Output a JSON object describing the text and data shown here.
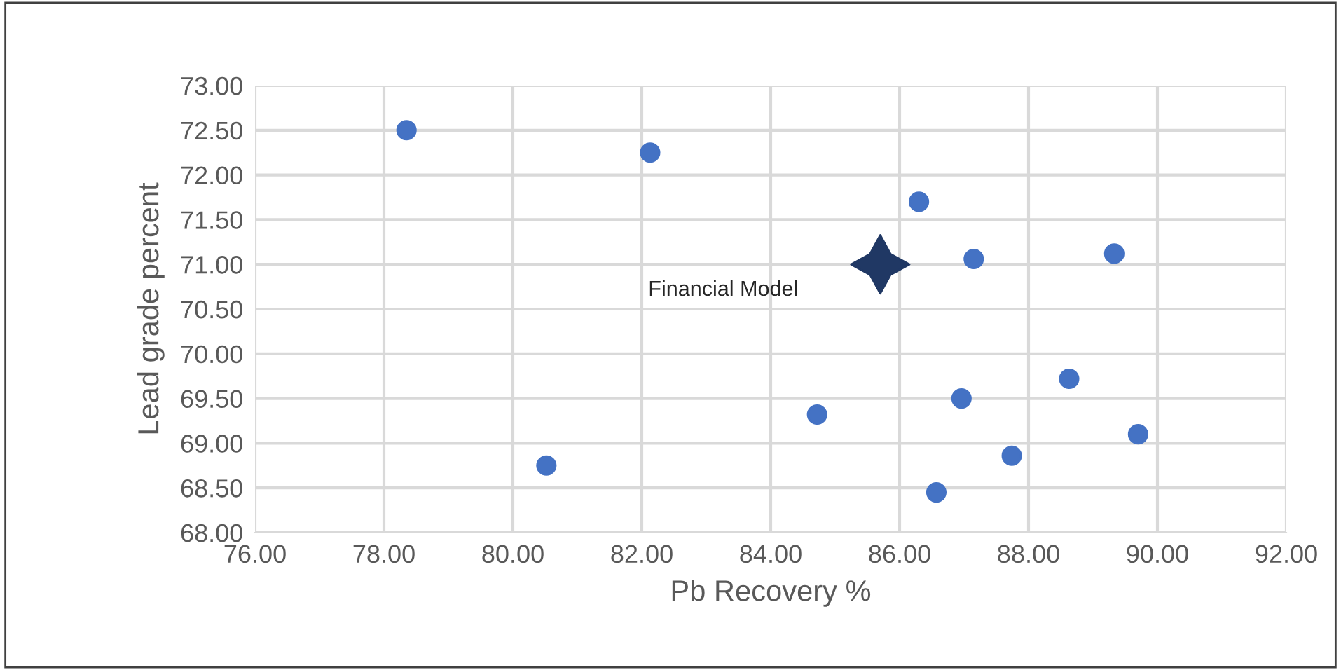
{
  "chart_data": {
    "type": "scatter",
    "xlabel": "Pb Recovery %",
    "ylabel": "Lead grade percent",
    "series": [
      {
        "color": "#4472c4",
        "marker": "circle",
        "x": [
          78.35,
          82.13,
          86.3,
          87.15,
          89.33,
          88.63,
          86.96,
          84.72,
          80.52,
          87.74,
          89.7,
          86.57
        ],
        "values": [
          72.5,
          72.25,
          71.7,
          71.06,
          71.12,
          69.72,
          69.5,
          69.32,
          68.75,
          68.86,
          69.1,
          68.45
        ]
      },
      {
        "color": "#203864",
        "marker": "star",
        "x": [
          85.7
        ],
        "values": [
          71.0
        ]
      }
    ],
    "annotations": [
      "Financial Model"
    ],
    "xlim": [
      76,
      92
    ],
    "xticks": [
      {
        "value": 76,
        "label": "76.00"
      },
      {
        "value": 78,
        "label": "78.00"
      },
      {
        "value": 80,
        "label": "80.00"
      },
      {
        "value": 82,
        "label": "82.00"
      },
      {
        "value": 84,
        "label": "84.00"
      },
      {
        "value": 86,
        "label": "86.00"
      },
      {
        "value": 88,
        "label": "88.00"
      },
      {
        "value": 90,
        "label": "90.00"
      },
      {
        "value": 92,
        "label": "92.00"
      }
    ],
    "ylim": [
      68,
      73
    ],
    "yticks": [
      {
        "value": 68,
        "label": "68.00"
      },
      {
        "value": 68.5,
        "label": "68.50"
      },
      {
        "value": 69,
        "label": "69.00"
      },
      {
        "value": 69.5,
        "label": "69.50"
      },
      {
        "value": 70,
        "label": "70.00"
      },
      {
        "value": 70.5,
        "label": "70.50"
      },
      {
        "value": 71,
        "label": "71.00"
      },
      {
        "value": 71.5,
        "label": "71.50"
      },
      {
        "value": 72,
        "label": "72.00"
      },
      {
        "value": 72.5,
        "label": "72.50"
      },
      {
        "value": 73,
        "label": "73.00"
      }
    ],
    "grid": true
  }
}
